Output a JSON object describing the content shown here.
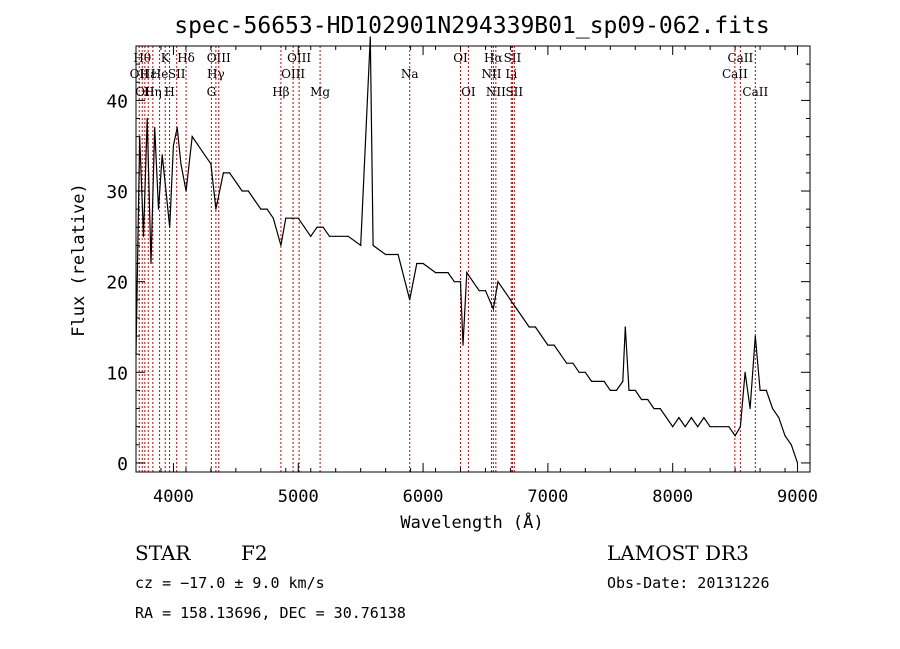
{
  "chart_data": {
    "type": "line",
    "title": "spec-56653-HD102901N294339B01_sp09-062.fits",
    "xlabel": "Wavelength (Å)",
    "ylabel": "Flux (relative)",
    "xlim": [
      3700,
      9100
    ],
    "ylim": [
      -1,
      46
    ],
    "x_ticks": [
      4000,
      5000,
      6000,
      7000,
      8000,
      9000
    ],
    "y_ticks": [
      0,
      10,
      20,
      30,
      40
    ],
    "series": [
      {
        "name": "flux",
        "x": [
          3700,
          3730,
          3760,
          3790,
          3820,
          3850,
          3880,
          3910,
          3940,
          3970,
          4000,
          4030,
          4060,
          4101,
          4150,
          4200,
          4250,
          4300,
          4340,
          4400,
          4450,
          4500,
          4550,
          4600,
          4650,
          4700,
          4750,
          4800,
          4861,
          4900,
          4950,
          5000,
          5050,
          5100,
          5150,
          5200,
          5250,
          5300,
          5400,
          5500,
          5577,
          5600,
          5700,
          5800,
          5893,
          5950,
          6000,
          6100,
          6200,
          6250,
          6300,
          6320,
          6350,
          6400,
          6450,
          6500,
          6563,
          6600,
          6650,
          6700,
          6750,
          6800,
          6850,
          6900,
          6950,
          7000,
          7050,
          7100,
          7150,
          7200,
          7250,
          7300,
          7350,
          7400,
          7450,
          7500,
          7550,
          7600,
          7620,
          7650,
          7700,
          7750,
          7800,
          7850,
          7900,
          7950,
          8000,
          8050,
          8100,
          8150,
          8200,
          8250,
          8300,
          8350,
          8400,
          8450,
          8500,
          8542,
          8580,
          8620,
          8662,
          8700,
          8750,
          8800,
          8850,
          8900,
          8950,
          9000
        ],
        "y": [
          12,
          36,
          25,
          38,
          22,
          37,
          28,
          34,
          30,
          26,
          35,
          37,
          33,
          30,
          36,
          35,
          34,
          33,
          28,
          32,
          32,
          31,
          30,
          30,
          29,
          28,
          28,
          27,
          24,
          27,
          27,
          27,
          26,
          25,
          26,
          26,
          25,
          25,
          25,
          24,
          47,
          24,
          23,
          23,
          18,
          22,
          22,
          21,
          21,
          20,
          20,
          13,
          21,
          20,
          19,
          19,
          17,
          20,
          19,
          18,
          17,
          16,
          15,
          15,
          14,
          13,
          13,
          12,
          11,
          11,
          10,
          10,
          9,
          9,
          9,
          8,
          8,
          9,
          15,
          8,
          8,
          7,
          7,
          6,
          6,
          5,
          4,
          5,
          4,
          5,
          4,
          5,
          4,
          4,
          4,
          4,
          3,
          4,
          10,
          6,
          14,
          8,
          8,
          6,
          5,
          3,
          2,
          0
        ]
      }
    ],
    "lines": [
      {
        "wl": 3726,
        "label": "OII",
        "row": 2
      },
      {
        "wl": 3750,
        "label": "Hθ",
        "row": 1
      },
      {
        "wl": 3771,
        "label": "OII",
        "row": 3
      },
      {
        "wl": 3798,
        "label": "Hε",
        "row": 2
      },
      {
        "wl": 3835,
        "label": "Hη",
        "row": 3
      },
      {
        "wl": 3889,
        "label": "He",
        "row": 2
      },
      {
        "wl": 3934,
        "label": "K",
        "row": 1
      },
      {
        "wl": 3969,
        "label": "H",
        "row": 3
      },
      {
        "wl": 4026,
        "label": "SII",
        "row": 2
      },
      {
        "wl": 4101,
        "label": "Hδ",
        "row": 1
      },
      {
        "wl": 4304,
        "label": "G",
        "row": 3
      },
      {
        "wl": 4340,
        "label": "Hγ",
        "row": 2
      },
      {
        "wl": 4363,
        "label": "OIII",
        "row": 1
      },
      {
        "wl": 4861,
        "label": "Hβ",
        "row": 3
      },
      {
        "wl": 4959,
        "label": "OIII",
        "row": 2
      },
      {
        "wl": 5007,
        "label": "OIII",
        "row": 1
      },
      {
        "wl": 5175,
        "label": "Mg",
        "row": 3
      },
      {
        "wl": 5893,
        "label": "Na",
        "row": 2
      },
      {
        "wl": 6300,
        "label": "OI",
        "row": 1
      },
      {
        "wl": 6363,
        "label": "OI",
        "row": 3
      },
      {
        "wl": 6548,
        "label": "NII",
        "row": 2
      },
      {
        "wl": 6563,
        "label": "Hα",
        "row": 1
      },
      {
        "wl": 6583,
        "label": "NII",
        "row": 3
      },
      {
        "wl": 6707,
        "label": "Li",
        "row": 2
      },
      {
        "wl": 6716,
        "label": "SII",
        "row": 1
      },
      {
        "wl": 6731,
        "label": "SII",
        "row": 3
      },
      {
        "wl": 8498,
        "label": "CaII",
        "row": 2
      },
      {
        "wl": 8542,
        "label": "CaII",
        "row": 1
      },
      {
        "wl": 8662,
        "label": "CaII",
        "row": 3
      }
    ]
  },
  "info": {
    "object_class": "STAR",
    "subclass": "F2",
    "survey": "LAMOST DR3",
    "redshift": "cz = −17.0 ± 9.0 km/s",
    "obs_date": "Obs-Date: 20131226",
    "coords": "RA = 158.13696, DEC =  30.76138"
  }
}
